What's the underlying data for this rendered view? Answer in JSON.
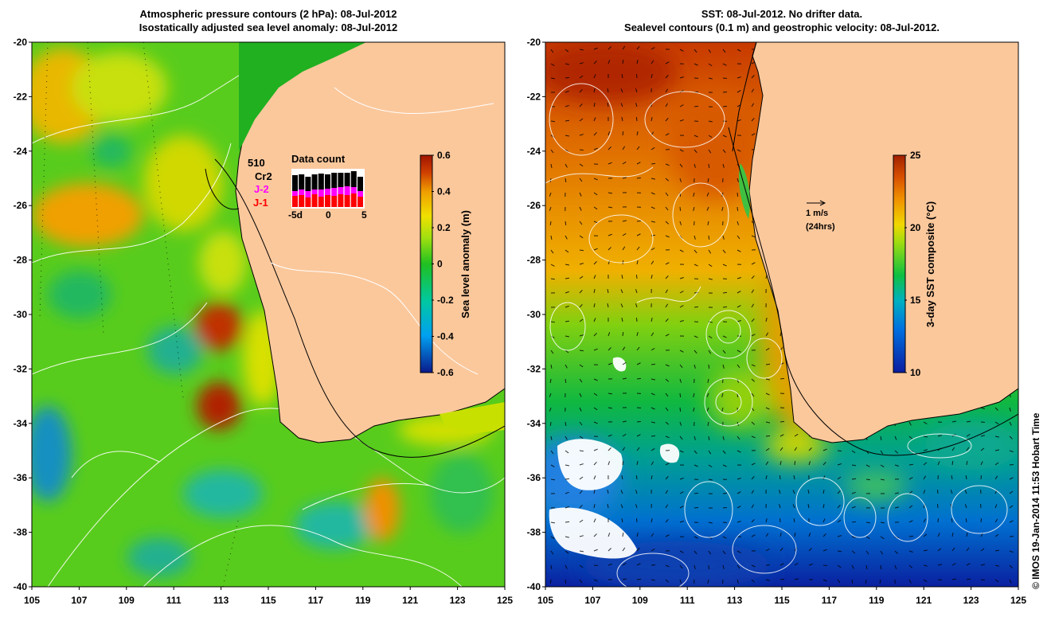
{
  "left_panel": {
    "title_line1": "Atmospheric pressure contours (2 hPa): 08-Jul-2012",
    "title_line2": "Isostatically adjusted sea level anomaly: 08-Jul-2012",
    "colorbar": {
      "label": "Sea level anomaly (m)",
      "ticks": [
        "0.6",
        "0.4",
        "0.2",
        "0",
        "-0.2",
        "-0.4",
        "-0.6"
      ]
    },
    "data_count": {
      "title": "Data count",
      "count": "510",
      "missions": [
        {
          "label": "Cr2",
          "color": "#000000"
        },
        {
          "label": "J-2",
          "color": "#ff00ff"
        },
        {
          "label": "J-1",
          "color": "#ff0000"
        }
      ],
      "xticks": [
        "-5d",
        "0",
        "5"
      ]
    }
  },
  "right_panel": {
    "title_line1": "SST: 08-Jul-2012. No drifter data.",
    "title_line2": "Sealevel contours (0.1 m) and geostrophic velocity: 08-Jul-2012.",
    "colorbar": {
      "label": "3-day SST composite (°C)",
      "ticks": [
        "25",
        "20",
        "15",
        "10"
      ]
    },
    "velocity_scale": {
      "label1": "1 m/s",
      "label2": "(24hrs)"
    }
  },
  "axes": {
    "lat_ticks": [
      "-20",
      "-22",
      "-24",
      "-26",
      "-28",
      "-30",
      "-32",
      "-34",
      "-36",
      "-38",
      "-40"
    ],
    "lon_ticks": [
      "105",
      "107",
      "109",
      "111",
      "113",
      "115",
      "117",
      "119",
      "121",
      "123",
      "125"
    ]
  },
  "credit": "© IMOS 19-Jan-2014 11:53 Hobart Time",
  "colors": {
    "land": "#fbc89c",
    "sla_high": "#a01400",
    "sla_low": "#0a1a8c",
    "sst_high": "#b42e00",
    "sst_low": "#0a1ca0"
  }
}
